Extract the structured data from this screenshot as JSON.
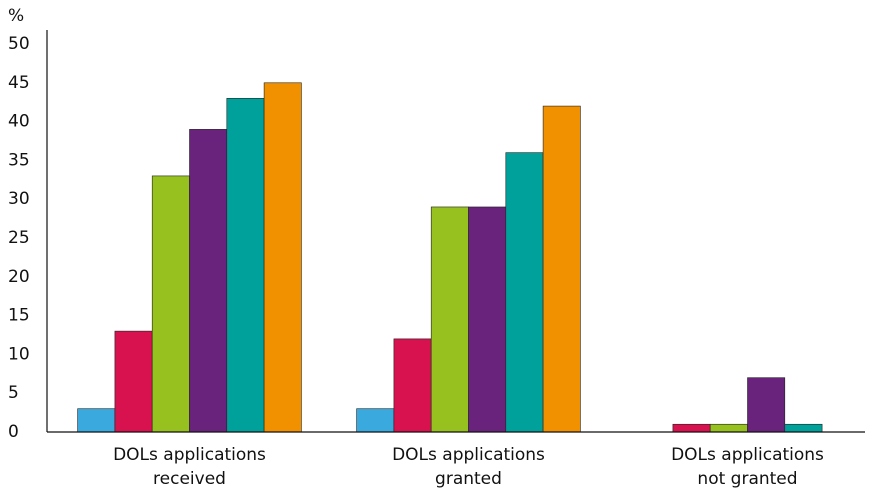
{
  "chart_data": {
    "type": "bar",
    "y_label": "%",
    "categories": [
      [
        "DOLs applications",
        "received"
      ],
      [
        "DOLs applications",
        "granted"
      ],
      [
        "DOLs applications",
        "not granted"
      ]
    ],
    "series": [
      {
        "color": "#3aa9dd",
        "values": [
          3,
          3,
          0
        ]
      },
      {
        "color": "#d8124f",
        "values": [
          13,
          12,
          1
        ]
      },
      {
        "color": "#96c11f",
        "values": [
          33,
          29,
          1
        ]
      },
      {
        "color": "#6a237d",
        "values": [
          39,
          29,
          7
        ]
      },
      {
        "color": "#00a19a",
        "values": [
          43,
          36,
          1
        ]
      },
      {
        "color": "#f29100",
        "values": [
          45,
          42,
          0
        ]
      }
    ],
    "ylim": [
      0,
      50
    ],
    "yticks": [
      0,
      5,
      10,
      15,
      20,
      25,
      30,
      35,
      40,
      45,
      50
    ],
    "grid": false
  }
}
